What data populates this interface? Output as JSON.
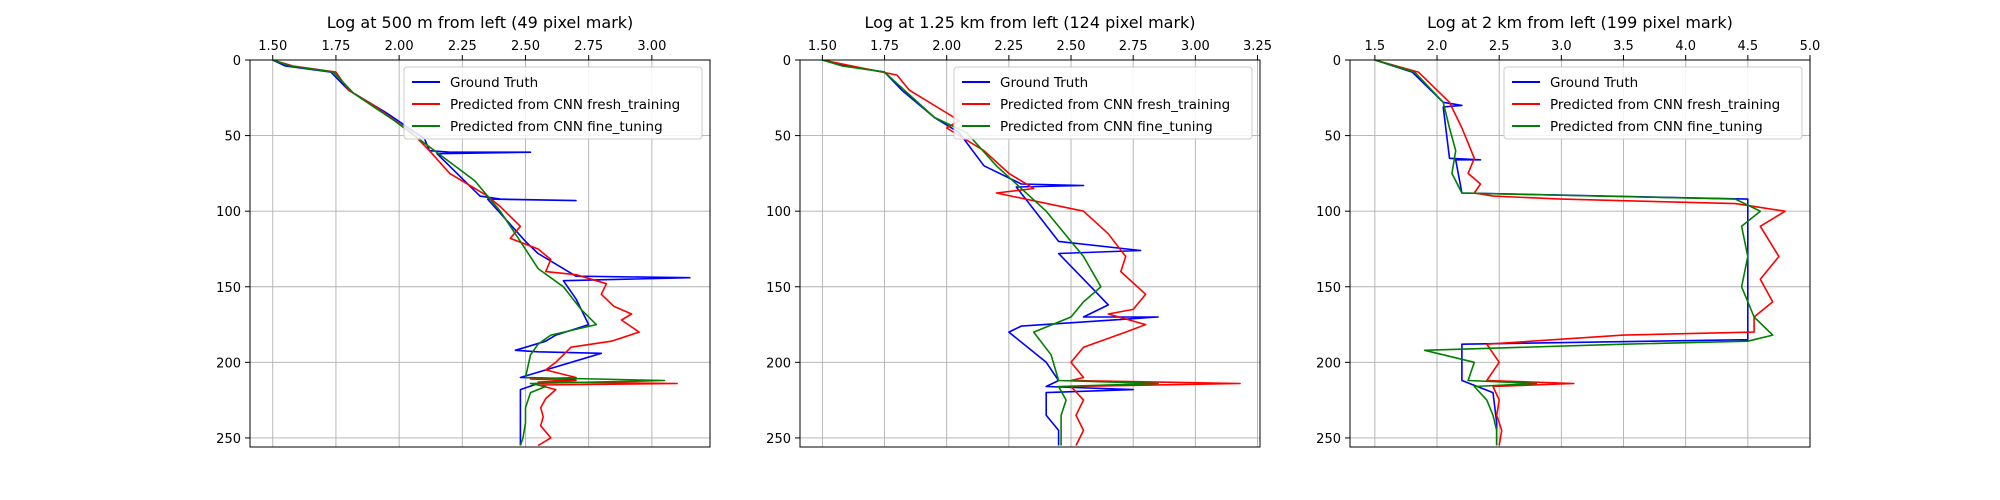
{
  "colors": {
    "truth": "#0000ff",
    "fresh": "#ff0000",
    "fine": "#008000"
  },
  "legend": {
    "truth": "Ground Truth",
    "fresh": "Predicted from CNN fresh_training",
    "fine": "Predicted from CNN fine_tuning"
  },
  "chart_data": [
    {
      "type": "line",
      "title": "Log at 500 m from left (49 pixel mark)",
      "xlim": [
        1.41,
        3.23
      ],
      "ylim": [
        256,
        0
      ],
      "x_axis_position": "top",
      "y_inverted": true,
      "grid": true,
      "legend_position": "upper-right",
      "xticks": [
        1.5,
        1.75,
        2.0,
        2.25,
        2.5,
        2.75,
        3.0
      ],
      "xtick_labels": [
        "1.50",
        "1.75",
        "2.00",
        "2.25",
        "2.50",
        "2.75",
        "3.00"
      ],
      "yticks": [
        0,
        50,
        100,
        150,
        200,
        250
      ],
      "ytick_labels": [
        "0",
        "50",
        "100",
        "150",
        "200",
        "250"
      ],
      "series": [
        {
          "name": "Ground Truth",
          "color": "#0000ff",
          "x": [
            1.5,
            1.55,
            1.73,
            1.8,
            1.95,
            2.1,
            2.12,
            2.2,
            2.52,
            2.15,
            2.32,
            2.4,
            2.7,
            2.35,
            2.5,
            2.55,
            2.7,
            3.15,
            2.65,
            2.7,
            2.75,
            2.62,
            2.58,
            2.46,
            2.55,
            2.8,
            2.48,
            2.7,
            2.55,
            2.48,
            2.48,
            2.48
          ],
          "y": [
            0,
            4,
            8,
            20,
            35,
            52,
            60,
            61,
            61,
            62,
            90,
            92,
            93,
            92,
            120,
            128,
            143,
            144,
            146,
            158,
            175,
            182,
            186,
            192,
            193,
            194,
            210,
            211,
            214,
            218,
            240,
            255
          ]
        },
        {
          "name": "Predicted from CNN fresh_training",
          "color": "#ff0000",
          "x": [
            1.5,
            1.58,
            1.75,
            1.8,
            1.9,
            2.05,
            2.12,
            2.2,
            2.35,
            2.4,
            2.48,
            2.44,
            2.55,
            2.6,
            2.58,
            2.7,
            2.82,
            2.8,
            2.85,
            2.92,
            2.88,
            2.95,
            2.84,
            2.68,
            2.62,
            2.58,
            2.65,
            2.7,
            2.52,
            2.7,
            2.55,
            3.1,
            2.55,
            2.62,
            2.58,
            2.56,
            2.57,
            2.56,
            2.6,
            2.55
          ],
          "y": [
            0,
            4,
            8,
            20,
            30,
            48,
            60,
            75,
            90,
            97,
            110,
            118,
            125,
            132,
            140,
            142,
            148,
            155,
            163,
            168,
            172,
            180,
            186,
            190,
            200,
            205,
            208,
            210,
            211,
            212,
            213,
            214,
            215,
            218,
            224,
            230,
            236,
            242,
            250,
            255
          ]
        },
        {
          "name": "Predicted from CNN fine_tuning",
          "color": "#008000",
          "x": [
            1.5,
            1.57,
            1.74,
            1.82,
            1.98,
            2.1,
            2.3,
            2.4,
            2.48,
            2.55,
            2.65,
            2.72,
            2.78,
            2.6,
            2.55,
            2.52,
            2.5,
            3.05,
            2.52,
            2.58,
            2.52,
            2.5,
            2.5,
            2.49,
            2.48
          ],
          "y": [
            0,
            4,
            8,
            22,
            40,
            55,
            80,
            100,
            120,
            138,
            150,
            165,
            175,
            182,
            188,
            195,
            210,
            212,
            214,
            216,
            220,
            230,
            240,
            250,
            255
          ]
        }
      ]
    },
    {
      "type": "line",
      "title": "Log at 1.25 km from left (124 pixel mark)",
      "xlim": [
        1.41,
        3.26
      ],
      "ylim": [
        256,
        0
      ],
      "x_axis_position": "top",
      "y_inverted": true,
      "grid": true,
      "legend_position": "upper-right",
      "xticks": [
        1.5,
        1.75,
        2.0,
        2.25,
        2.5,
        2.75,
        3.0,
        3.25
      ],
      "xtick_labels": [
        "1.50",
        "1.75",
        "2.00",
        "2.25",
        "2.50",
        "2.75",
        "3.00",
        "3.25"
      ],
      "yticks": [
        0,
        50,
        100,
        150,
        200,
        250
      ],
      "ytick_labels": [
        "0",
        "50",
        "100",
        "150",
        "200",
        "250"
      ],
      "series": [
        {
          "name": "Ground Truth",
          "color": "#0000ff",
          "x": [
            1.5,
            1.6,
            1.75,
            1.82,
            1.95,
            2.05,
            2.15,
            2.3,
            2.55,
            2.28,
            2.45,
            2.78,
            2.45,
            2.58,
            2.65,
            2.55,
            2.85,
            2.3,
            2.25,
            2.4,
            2.45,
            2.4,
            2.75,
            2.4,
            2.4,
            2.45,
            2.45
          ],
          "y": [
            0,
            4,
            8,
            20,
            38,
            48,
            70,
            82,
            83,
            84,
            120,
            126,
            128,
            150,
            162,
            170,
            170,
            176,
            180,
            200,
            212,
            216,
            218,
            220,
            235,
            245,
            255
          ]
        },
        {
          "name": "Predicted from CNN fresh_training",
          "color": "#ff0000",
          "x": [
            1.5,
            1.62,
            1.8,
            1.85,
            2.05,
            2.0,
            2.15,
            2.25,
            2.35,
            2.2,
            2.55,
            2.65,
            2.72,
            2.7,
            2.8,
            2.75,
            2.65,
            2.8,
            2.72,
            2.55,
            2.5,
            2.55,
            2.5,
            3.18,
            2.5,
            2.55,
            2.52,
            2.55,
            2.52
          ],
          "y": [
            0,
            4,
            10,
            20,
            40,
            45,
            60,
            75,
            85,
            88,
            100,
            115,
            130,
            140,
            155,
            165,
            168,
            175,
            180,
            190,
            200,
            210,
            212,
            214,
            216,
            225,
            235,
            245,
            255
          ]
        },
        {
          "name": "Predicted from CNN fine_tuning",
          "color": "#008000",
          "x": [
            1.5,
            1.58,
            1.75,
            1.83,
            1.95,
            2.08,
            2.2,
            2.4,
            2.5,
            2.55,
            2.62,
            2.55,
            2.5,
            2.35,
            2.42,
            2.45,
            2.85,
            2.45,
            2.48,
            2.46,
            2.46,
            2.46
          ],
          "y": [
            0,
            4,
            8,
            20,
            38,
            48,
            70,
            100,
            120,
            130,
            150,
            160,
            170,
            180,
            195,
            212,
            214,
            216,
            225,
            235,
            245,
            255
          ]
        }
      ]
    },
    {
      "type": "line",
      "title": "Log at 2 km from left (199 pixel mark)",
      "xlim": [
        1.3,
        5.0
      ],
      "ylim": [
        256,
        0
      ],
      "x_axis_position": "top",
      "y_inverted": true,
      "grid": true,
      "legend_position": "upper-right",
      "xticks": [
        1.5,
        2.0,
        2.5,
        3.0,
        3.5,
        4.0,
        4.5,
        5.0
      ],
      "xtick_labels": [
        "1.5",
        "2.0",
        "2.5",
        "3.0",
        "3.5",
        "4.0",
        "4.5",
        "5.0"
      ],
      "yticks": [
        0,
        50,
        100,
        150,
        200,
        250
      ],
      "ytick_labels": [
        "0",
        "50",
        "100",
        "150",
        "200",
        "250"
      ],
      "series": [
        {
          "name": "Ground Truth",
          "color": "#0000ff",
          "x": [
            1.5,
            1.8,
            2.05,
            2.2,
            2.05,
            2.1,
            2.35,
            2.15,
            2.2,
            4.5,
            4.5,
            4.5,
            4.5,
            2.2,
            2.2,
            2.45,
            2.48,
            2.48
          ],
          "y": [
            0,
            8,
            28,
            30,
            31,
            65,
            66,
            66,
            88,
            92,
            110,
            150,
            185,
            188,
            212,
            220,
            240,
            255
          ]
        },
        {
          "name": "Predicted from CNN fresh_training",
          "color": "#ff0000",
          "x": [
            1.5,
            1.85,
            2.1,
            2.2,
            2.25,
            2.3,
            2.25,
            2.35,
            2.3,
            2.45,
            3.0,
            4.4,
            4.8,
            4.6,
            4.75,
            4.6,
            4.7,
            4.55,
            4.55,
            3.5,
            2.4,
            2.5,
            2.4,
            3.1,
            2.45,
            2.5,
            2.48,
            2.52,
            2.5
          ],
          "y": [
            0,
            8,
            28,
            45,
            55,
            65,
            75,
            82,
            88,
            90,
            92,
            95,
            100,
            110,
            130,
            145,
            160,
            170,
            180,
            182,
            188,
            200,
            212,
            214,
            216,
            225,
            235,
            245,
            255
          ]
        },
        {
          "name": "Predicted from CNN fine_tuning",
          "color": "#008000",
          "x": [
            1.5,
            1.82,
            2.05,
            2.1,
            2.15,
            2.12,
            2.2,
            4.4,
            4.6,
            4.45,
            4.5,
            4.45,
            4.55,
            4.7,
            4.5,
            3.5,
            1.9,
            2.3,
            2.25,
            2.8,
            2.3,
            2.4,
            2.45,
            2.48,
            2.48
          ],
          "y": [
            0,
            8,
            28,
            45,
            60,
            75,
            88,
            92,
            100,
            110,
            130,
            150,
            170,
            182,
            186,
            188,
            192,
            200,
            212,
            214,
            216,
            225,
            235,
            245,
            255
          ]
        }
      ]
    }
  ]
}
